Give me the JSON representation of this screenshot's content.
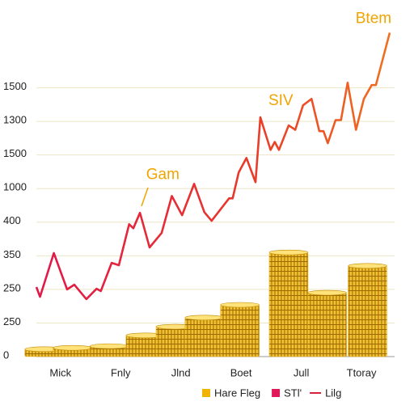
{
  "chart_data": {
    "type": "line",
    "annotations": [
      {
        "text": "Btem",
        "x": 5.2,
        "y": 10.05
      },
      {
        "text": "SIV",
        "x": 3.66,
        "y": 7.6
      },
      {
        "text": "Gam",
        "x": 1.7,
        "y": 5.4
      }
    ],
    "categories": [
      "Mick",
      "Fnly",
      "Jlnd",
      "Boet",
      "Jull",
      "Ttoray"
    ],
    "xlim": [
      -0.4,
      5.55
    ],
    "ylim": [
      0,
      10.3
    ],
    "yticks": [
      {
        "value": 0,
        "label": "0"
      },
      {
        "value": 1,
        "label": "250"
      },
      {
        "value": 2,
        "label": "250"
      },
      {
        "value": 3,
        "label": "350"
      },
      {
        "value": 4,
        "label": "400"
      },
      {
        "value": 5,
        "label": "1000"
      },
      {
        "value": 6,
        "label": "1500"
      },
      {
        "value": 7,
        "label": "1300"
      },
      {
        "value": 8,
        "label": "1500"
      }
    ],
    "grid": true,
    "coins": {
      "color": "#e6b01e",
      "x": [
        -0.27,
        0.2,
        0.81,
        1.41,
        1.91,
        2.39,
        2.98,
        3.79,
        4.43,
        5.1
      ],
      "values": [
        0.22,
        0.26,
        0.31,
        0.63,
        0.89,
        1.16,
        1.54,
        3.1,
        1.9,
        2.7
      ]
    },
    "line": {
      "color": "#e8253a",
      "x": [
        -0.4,
        -0.34,
        -0.11,
        0.11,
        0.23,
        0.43,
        0.6,
        0.67,
        0.85,
        0.97,
        1.14,
        1.21,
        1.32,
        1.48,
        1.68,
        1.85,
        2.02,
        2.22,
        2.39,
        2.51,
        2.8,
        2.86,
        2.96,
        3.09,
        3.24,
        3.32,
        3.49,
        3.56,
        3.63,
        3.79,
        3.9,
        4.03,
        4.17,
        4.3,
        4.37,
        4.44,
        4.57,
        4.66,
        4.77,
        4.91,
        5.04,
        5.17,
        5.24,
        5.47
      ],
      "values": [
        2.07,
        1.78,
        3.08,
        2.0,
        2.14,
        1.71,
        2.02,
        1.95,
        2.79,
        2.72,
        3.94,
        3.82,
        4.28,
        3.25,
        3.68,
        4.78,
        4.21,
        5.14,
        4.3,
        4.04,
        4.71,
        4.71,
        5.48,
        5.91,
        5.19,
        7.12,
        6.15,
        6.39,
        6.15,
        6.88,
        6.75,
        7.48,
        7.67,
        6.71,
        6.71,
        6.35,
        7.04,
        7.04,
        8.15,
        6.75,
        7.67,
        8.08,
        8.08,
        9.64
      ]
    },
    "legend": [
      {
        "name": "Hare Fleg",
        "color": "#f0b400",
        "marker": "square"
      },
      {
        "name": "STl'",
        "color": "#e0185a",
        "marker": "square"
      },
      {
        "name": "Lilg",
        "color": "#d8203a",
        "marker": "line"
      }
    ]
  }
}
